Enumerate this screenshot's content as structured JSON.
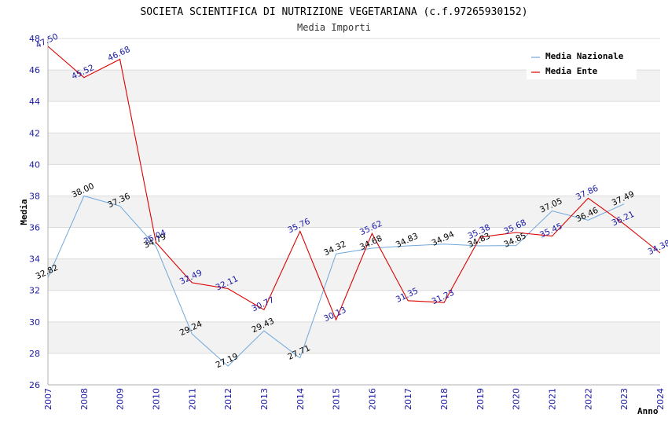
{
  "chart_data": {
    "type": "line",
    "title": "SOCIETA SCIENTIFICA DI NUTRIZIONE VEGETARIANA (c.f.97265930152)",
    "subtitle": "Media Importi",
    "xlabel": "Anno",
    "ylabel": "Media",
    "ylim": [
      26,
      48
    ],
    "yticks": [
      26,
      28,
      30,
      32,
      34,
      36,
      38,
      40,
      42,
      44,
      46,
      48
    ],
    "x": [
      "2007",
      "2008",
      "2009",
      "2010",
      "2011",
      "2012",
      "2013",
      "2014",
      "2015",
      "2016",
      "2017",
      "2018",
      "2019",
      "2020",
      "2021",
      "2022",
      "2023",
      "2024"
    ],
    "grid": "horizontal bands",
    "legend_position": "top-right",
    "series": [
      {
        "name": "Media Nazionale",
        "color": "#6fa8dc",
        "label_color": "#000000",
        "values": [
          32.82,
          38.0,
          37.36,
          34.79,
          29.24,
          27.19,
          29.43,
          27.71,
          34.32,
          34.68,
          34.83,
          34.94,
          34.83,
          34.85,
          37.05,
          36.46,
          37.49,
          null
        ],
        "labels": [
          "32.82",
          "38.00",
          "37.36",
          "34.79",
          "29.24",
          "27.19",
          "29.43",
          "27.71",
          "34.32",
          "34.68",
          "34.83",
          "34.94",
          "34.83",
          "34.85",
          "37.05",
          "36.46",
          "37.49",
          ""
        ]
      },
      {
        "name": "Media Ente",
        "color": "#dd0000",
        "label_color": "#1a1aa6",
        "values": [
          47.5,
          45.52,
          46.68,
          35.04,
          32.49,
          32.11,
          30.77,
          35.76,
          30.13,
          35.62,
          31.35,
          31.23,
          35.38,
          35.68,
          35.45,
          37.86,
          36.21,
          34.38
        ],
        "labels": [
          "47.50",
          "45.52",
          "46.68",
          "35.04",
          "32.49",
          "32.11",
          "30.77",
          "35.76",
          "30.13",
          "35.62",
          "31.35",
          "31.23",
          "35.38",
          "35.68",
          "35.45",
          "37.86",
          "36.21",
          "34.38"
        ]
      }
    ]
  }
}
